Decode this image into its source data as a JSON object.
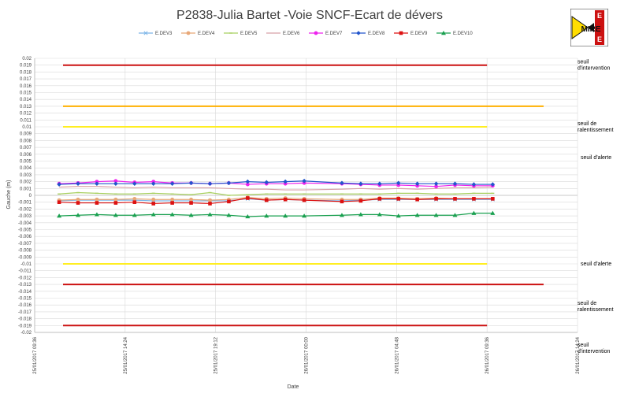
{
  "chart_data": {
    "type": "line",
    "title": "P2838-Julia Bartet -Voie SNCF-Ecart de dévers",
    "xlabel": "Date",
    "ylabel": "Gauche (m)",
    "ylim": [
      -0.02,
      0.02
    ],
    "y_ticks": [
      "0.02",
      "0.019",
      "0.018",
      "0.017",
      "0.016",
      "0.015",
      "0.014",
      "0.013",
      "0.012",
      "0.011",
      "0.01",
      "0.009",
      "0.008",
      "0.007",
      "0.006",
      "0.005",
      "0.004",
      "0.003",
      "0.002",
      "0.001",
      "0",
      "-0.001",
      "-0.002",
      "-0.003",
      "-0.004",
      "-0.005",
      "-0.006",
      "-0.007",
      "-0.008",
      "-0.009",
      "-0.01",
      "-0.011",
      "-0.012",
      "-0.013",
      "-0.014",
      "-0.015",
      "-0.016",
      "-0.017",
      "-0.018",
      "-0.019",
      "-0.02"
    ],
    "x_ticks": [
      "25/01/2017 09:36",
      "25/01/2017 14:24",
      "25/01/2017 19:12",
      "26/01/2017 00:00",
      "26/01/2017 04:48",
      "26/01/2017 09:36",
      "26/01/2017 14:24"
    ],
    "x_tick_hours": [
      0,
      4.8,
      9.6,
      14.4,
      19.2,
      24,
      28.8
    ],
    "x_range_hours": [
      0,
      28.8
    ],
    "grid": true,
    "legend_position": "top",
    "x": [
      1.3,
      2.3,
      3.3,
      4.3,
      5.3,
      6.3,
      7.3,
      8.3,
      9.3,
      10.3,
      11.3,
      12.3,
      13.3,
      14.3,
      16.3,
      17.3,
      18.3,
      19.3,
      20.3,
      21.3,
      22.3,
      23.3,
      24.3
    ],
    "series": [
      {
        "name": "E.DEV3",
        "color": "#7cb5e8",
        "marker": "x",
        "values": [
          -0.0008,
          -0.0007,
          -0.0007,
          -0.0007,
          -0.0007,
          -0.0008,
          -0.0008,
          -0.0008,
          -0.0008,
          -0.0008,
          -0.0005,
          -0.0007,
          -0.0006,
          -0.0007,
          -0.0008,
          -0.0007,
          -0.0006,
          -0.0006,
          -0.0006,
          -0.0006,
          -0.0006,
          -0.0006,
          -0.0006
        ]
      },
      {
        "name": "E.DEV4",
        "color": "#e8a878",
        "marker": "circle",
        "values": [
          -0.0007,
          -0.0006,
          -0.0006,
          -0.0006,
          -0.0005,
          -0.0006,
          -0.0006,
          -0.0006,
          -0.0007,
          -0.0006,
          -0.0003,
          -0.0005,
          -0.0004,
          -0.0005,
          -0.0006,
          -0.0006,
          -0.0004,
          -0.0004,
          -0.0005,
          -0.0004,
          -0.0005,
          -0.0005,
          -0.0005
        ]
      },
      {
        "name": "E.DEV5",
        "color": "#a8d060",
        "marker": "dash",
        "values": [
          0.0002,
          0.0004,
          0.0003,
          0.0002,
          0.0002,
          0.0003,
          0.0002,
          0.0001,
          0.0004,
          0.0,
          0.0001,
          0.0002,
          0.0002,
          0.0002,
          0.0002,
          0.0002,
          0.0002,
          0.0003,
          0.0003,
          0.0002,
          0.0002,
          0.0003,
          0.0003
        ]
      },
      {
        "name": "E.DEV6",
        "color": "#d8a0a8",
        "marker": "none",
        "values": [
          0.0012,
          0.0013,
          0.0013,
          0.0012,
          0.0011,
          0.0012,
          0.0011,
          0.0011,
          0.0011,
          0.001,
          0.0009,
          0.0009,
          0.0008,
          0.0008,
          0.0009,
          0.001,
          0.0009,
          0.001,
          0.0009,
          0.001,
          0.0011,
          0.0011,
          0.0012
        ]
      },
      {
        "name": "E.DEV7",
        "color": "#ee22ee",
        "marker": "circle",
        "values": [
          0.0017,
          0.0018,
          0.002,
          0.0021,
          0.0019,
          0.002,
          0.0018,
          0.0018,
          0.0017,
          0.0018,
          0.0016,
          0.0017,
          0.0017,
          0.0018,
          0.0017,
          0.0016,
          0.0015,
          0.0015,
          0.0014,
          0.0013,
          0.0015,
          0.0014,
          0.0014
        ]
      },
      {
        "name": "E.DEV8",
        "color": "#2255cc",
        "marker": "diamond",
        "values": [
          0.0016,
          0.0017,
          0.0017,
          0.0017,
          0.0017,
          0.0017,
          0.0017,
          0.0018,
          0.0017,
          0.0018,
          0.002,
          0.0019,
          0.002,
          0.0021,
          0.0018,
          0.0017,
          0.0017,
          0.0018,
          0.0017,
          0.0017,
          0.0017,
          0.0016,
          0.0016
        ]
      },
      {
        "name": "E.DEV9",
        "color": "#dd1111",
        "marker": "square",
        "values": [
          -0.001,
          -0.0011,
          -0.0011,
          -0.0011,
          -0.001,
          -0.0012,
          -0.0011,
          -0.0011,
          -0.0012,
          -0.0009,
          -0.0004,
          -0.0007,
          -0.0006,
          -0.0007,
          -0.0009,
          -0.0008,
          -0.0005,
          -0.0005,
          -0.0006,
          -0.0005,
          -0.0005,
          -0.0005,
          -0.0005
        ]
      },
      {
        "name": "E.DEV10",
        "color": "#1aa050",
        "marker": "triangle",
        "values": [
          -0.003,
          -0.0029,
          -0.0028,
          -0.0029,
          -0.0029,
          -0.0028,
          -0.0028,
          -0.0029,
          -0.0028,
          -0.0029,
          -0.0031,
          -0.003,
          -0.003,
          -0.003,
          -0.0029,
          -0.0028,
          -0.0028,
          -0.003,
          -0.0029,
          -0.0029,
          -0.0029,
          -0.0026,
          -0.0026
        ]
      }
    ],
    "threshold_lines": [
      {
        "value": 0.019,
        "color": "#cc1111",
        "label": "seuil d'intervention",
        "from": 0,
        "to": 24
      },
      {
        "value": 0.013,
        "color": "#ffb000",
        "label": "",
        "from": 0,
        "to": 27
      },
      {
        "value": 0.01,
        "color": "#ffee22",
        "label": "seuil de ralentissement",
        "from": 0,
        "to": 24
      },
      {
        "value": 0.0055,
        "color": "none",
        "label": "seuil d'alerte",
        "from": 0,
        "to": 0
      },
      {
        "value": -0.01,
        "color": "#ffee22",
        "label": "seuil d'alerte",
        "from": 0,
        "to": 24
      },
      {
        "value": -0.013,
        "color": "#cc1111",
        "label": "",
        "from": 0,
        "to": 27
      },
      {
        "value": -0.0162,
        "color": "none",
        "label": "seuil de ralentissement",
        "from": 0,
        "to": 0
      },
      {
        "value": -0.019,
        "color": "#cc1111",
        "label": "",
        "from": 0,
        "to": 24
      },
      {
        "value": -0.0223,
        "color": "none",
        "label": "seuil d'intervention",
        "from": 0,
        "to": 0
      }
    ]
  },
  "logo": {
    "text": "MIRE",
    "side_letters": "E",
    "colors": {
      "red": "#cc1111",
      "yellow": "#ffdd00",
      "black": "#111111"
    }
  }
}
